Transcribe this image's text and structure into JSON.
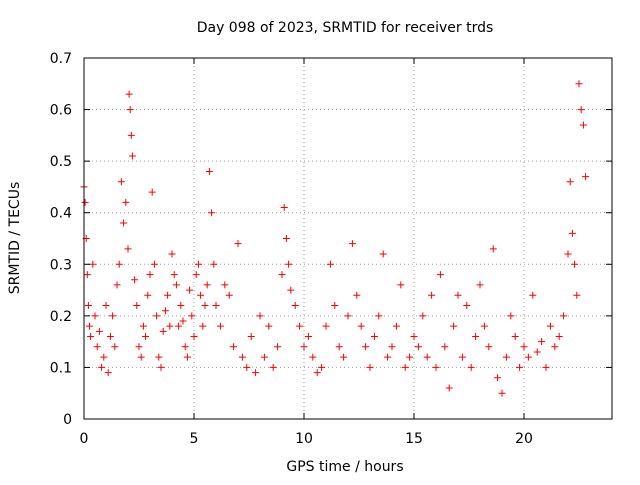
{
  "chart_data": {
    "type": "scatter",
    "title": "Day 098 of 2023, SRMTID for receiver trds",
    "xlabel": "GPS time / hours",
    "ylabel": "SRMTID / TECUs",
    "xlim": [
      0,
      24
    ],
    "ylim": [
      0,
      0.7
    ],
    "xticks": [
      0,
      5,
      10,
      15,
      20
    ],
    "xtick_labels": [
      "0",
      "5",
      "10",
      "15",
      "20"
    ],
    "yticks": [
      0,
      0.1,
      0.2,
      0.3,
      0.4,
      0.5,
      0.6,
      0.7
    ],
    "ytick_labels": [
      "0",
      "0.1",
      "0.2",
      "0.3",
      "0.4",
      "0.5",
      "0.6",
      "0.7"
    ],
    "grid": true,
    "marker": "+",
    "color": "#ff0000",
    "series": [
      {
        "name": "SRMTID",
        "x": [
          0.0,
          0.05,
          0.1,
          0.15,
          0.2,
          0.25,
          0.3,
          0.4,
          0.5,
          0.6,
          0.7,
          0.8,
          0.9,
          1.0,
          1.1,
          1.2,
          1.3,
          1.4,
          1.5,
          1.6,
          1.7,
          1.8,
          1.9,
          2.0,
          2.05,
          2.1,
          2.15,
          2.2,
          2.3,
          2.4,
          2.5,
          2.6,
          2.7,
          2.8,
          2.9,
          3.0,
          3.1,
          3.2,
          3.3,
          3.4,
          3.5,
          3.6,
          3.7,
          3.8,
          3.9,
          4.0,
          4.1,
          4.2,
          4.3,
          4.4,
          4.5,
          4.6,
          4.7,
          4.8,
          4.9,
          5.0,
          5.1,
          5.2,
          5.3,
          5.4,
          5.5,
          5.6,
          5.7,
          5.8,
          5.9,
          6.0,
          6.2,
          6.4,
          6.6,
          6.8,
          7.0,
          7.2,
          7.4,
          7.6,
          7.8,
          8.0,
          8.2,
          8.4,
          8.6,
          8.8,
          9.0,
          9.1,
          9.2,
          9.3,
          9.4,
          9.6,
          9.8,
          10.0,
          10.2,
          10.4,
          10.6,
          10.8,
          11.0,
          11.2,
          11.4,
          11.6,
          11.8,
          12.0,
          12.2,
          12.4,
          12.6,
          12.8,
          13.0,
          13.2,
          13.4,
          13.6,
          13.8,
          14.0,
          14.2,
          14.4,
          14.6,
          14.8,
          15.0,
          15.2,
          15.4,
          15.6,
          15.8,
          16.0,
          16.2,
          16.4,
          16.6,
          16.8,
          17.0,
          17.2,
          17.4,
          17.6,
          17.8,
          18.0,
          18.2,
          18.4,
          18.6,
          18.8,
          19.0,
          19.2,
          19.4,
          19.6,
          19.8,
          20.0,
          20.2,
          20.4,
          20.6,
          20.8,
          21.0,
          21.2,
          21.4,
          21.6,
          21.8,
          22.0,
          22.1,
          22.2,
          22.3,
          22.4,
          22.5,
          22.6,
          22.7,
          22.8
        ],
        "y": [
          0.45,
          0.42,
          0.35,
          0.28,
          0.22,
          0.18,
          0.16,
          0.3,
          0.2,
          0.14,
          0.17,
          0.1,
          0.12,
          0.22,
          0.09,
          0.16,
          0.2,
          0.14,
          0.26,
          0.3,
          0.46,
          0.38,
          0.42,
          0.33,
          0.63,
          0.6,
          0.55,
          0.51,
          0.27,
          0.22,
          0.14,
          0.12,
          0.18,
          0.16,
          0.24,
          0.28,
          0.44,
          0.3,
          0.2,
          0.12,
          0.1,
          0.17,
          0.21,
          0.24,
          0.18,
          0.32,
          0.28,
          0.26,
          0.18,
          0.22,
          0.19,
          0.14,
          0.12,
          0.25,
          0.2,
          0.16,
          0.28,
          0.3,
          0.24,
          0.18,
          0.22,
          0.26,
          0.48,
          0.4,
          0.3,
          0.22,
          0.18,
          0.26,
          0.24,
          0.14,
          0.34,
          0.12,
          0.1,
          0.16,
          0.09,
          0.2,
          0.12,
          0.18,
          0.1,
          0.14,
          0.28,
          0.41,
          0.35,
          0.3,
          0.25,
          0.22,
          0.18,
          0.14,
          0.16,
          0.12,
          0.09,
          0.1,
          0.18,
          0.3,
          0.22,
          0.14,
          0.12,
          0.2,
          0.34,
          0.24,
          0.18,
          0.14,
          0.1,
          0.16,
          0.2,
          0.32,
          0.12,
          0.14,
          0.18,
          0.26,
          0.1,
          0.12,
          0.16,
          0.14,
          0.2,
          0.12,
          0.24,
          0.1,
          0.28,
          0.14,
          0.06,
          0.18,
          0.24,
          0.12,
          0.22,
          0.1,
          0.16,
          0.26,
          0.18,
          0.14,
          0.33,
          0.08,
          0.05,
          0.12,
          0.2,
          0.16,
          0.1,
          0.14,
          0.12,
          0.24,
          0.13,
          0.15,
          0.1,
          0.18,
          0.14,
          0.16,
          0.2,
          0.32,
          0.46,
          0.36,
          0.3,
          0.24,
          0.65,
          0.6,
          0.57,
          0.47
        ]
      }
    ]
  }
}
